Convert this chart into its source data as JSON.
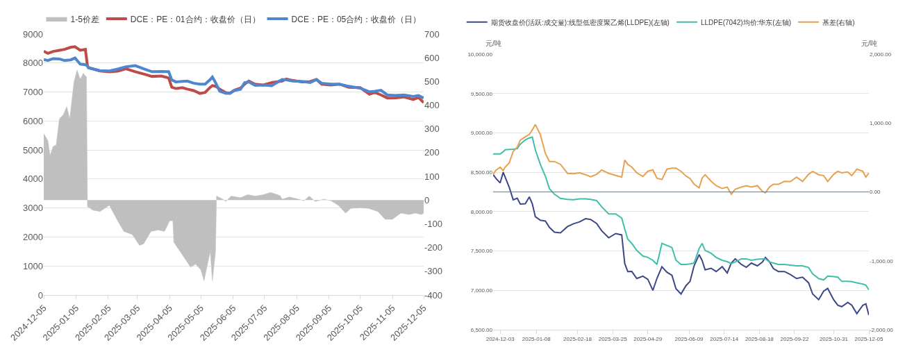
{
  "chart_data": [
    {
      "type": "line",
      "legend": "top",
      "grid": "y",
      "xlim": [
        "2024-12-05",
        "2025-12-05"
      ],
      "xticks": [
        "2024-12-05",
        "2025-01-05",
        "2025-02-05",
        "2025-03-05",
        "2025-04-05",
        "2025-05-05",
        "2025-06-05",
        "2025-07-05",
        "2025-08-05",
        "2025-09-05",
        "2025-10-05",
        "2025-11-05",
        "2025-12-05"
      ],
      "ylim": [
        0,
        9000
      ],
      "yticks": [
        0,
        1000,
        2000,
        3000,
        4000,
        5000,
        6000,
        7000,
        8000,
        9000
      ],
      "y2lim": [
        -400,
        700
      ],
      "y2ticks": [
        -400,
        -300,
        -200,
        -100,
        0,
        100,
        200,
        300,
        400,
        500,
        600,
        700
      ],
      "series": [
        {
          "name": "1-5价差",
          "type": "area",
          "axis": "y2",
          "color": "#bfbfbf",
          "x": [
            "2024-12-05",
            "2024-12-09",
            "2024-12-11",
            "2024-12-14",
            "2024-12-17",
            "2024-12-20",
            "2024-12-24",
            "2024-12-27",
            "2024-12-30",
            "2025-01-03",
            "2025-01-06",
            "2025-01-09",
            "2025-01-12",
            "2025-01-14",
            "2025-01-15",
            "2025-01-16",
            "2025-01-17",
            "2025-01-21",
            "2025-01-28",
            "2025-02-06",
            "2025-02-14",
            "2025-02-20",
            "2025-02-28",
            "2025-03-07",
            "2025-03-11",
            "2025-03-18",
            "2025-03-25",
            "2025-03-31",
            "2025-04-05",
            "2025-04-08",
            "2025-04-09",
            "2025-04-14",
            "2025-04-19",
            "2025-04-25",
            "2025-04-30",
            "2025-05-05",
            "2025-05-08",
            "2025-05-12",
            "2025-05-14",
            "2025-05-16",
            "2025-05-19",
            "2025-05-20",
            "2025-05-26",
            "2025-05-29",
            "2025-06-03",
            "2025-06-12",
            "2025-06-19",
            "2025-06-26",
            "2025-07-04",
            "2025-07-11",
            "2025-07-20",
            "2025-07-22",
            "2025-07-29",
            "2025-08-07",
            "2025-08-12",
            "2025-08-17",
            "2025-08-23",
            "2025-08-31",
            "2025-09-07",
            "2025-09-14",
            "2025-09-21",
            "2025-09-26",
            "2025-10-05",
            "2025-10-13",
            "2025-10-22",
            "2025-10-29",
            "2025-11-05",
            "2025-11-13",
            "2025-11-21",
            "2025-11-27",
            "2025-12-03",
            "2025-12-05"
          ],
          "values": [
            280,
            250,
            187,
            226,
            233,
            342,
            361,
            394,
            342,
            497,
            548,
            510,
            535,
            523,
            520,
            -29,
            -29,
            -42,
            -48,
            -22,
            -87,
            -132,
            -145,
            -191,
            -184,
            -132,
            -126,
            -132,
            -87,
            -87,
            -178,
            -210,
            -243,
            -282,
            -270,
            -295,
            -340,
            -256,
            -217,
            -340,
            -217,
            17,
            4,
            -6,
            17,
            10,
            23,
            17,
            23,
            32,
            19,
            4,
            13,
            4,
            -3,
            17,
            -6,
            4,
            -3,
            -22,
            -55,
            -35,
            -32,
            -35,
            -48,
            -81,
            -81,
            -55,
            -61,
            -55,
            -61,
            -55
          ]
        },
        {
          "name": "DCE：PE：01合约：收盘价（日）",
          "type": "line",
          "color": "#be4b48",
          "x": [
            "2024-12-05",
            "2024-12-09",
            "2024-12-14",
            "2024-12-20",
            "2024-12-25",
            "2024-12-31",
            "2025-01-04",
            "2025-01-09",
            "2025-01-14",
            "2025-01-16",
            "2025-01-17",
            "2025-01-23",
            "2025-01-28",
            "2025-02-06",
            "2025-02-14",
            "2025-02-22",
            "2025-03-03",
            "2025-03-11",
            "2025-03-19",
            "2025-03-28",
            "2025-04-04",
            "2025-04-07",
            "2025-04-11",
            "2025-04-17",
            "2025-04-22",
            "2025-04-28",
            "2025-05-04",
            "2025-05-09",
            "2025-05-14",
            "2025-05-16",
            "2025-05-19",
            "2025-05-23",
            "2025-05-29",
            "2025-06-02",
            "2025-06-06",
            "2025-06-12",
            "2025-06-16",
            "2025-06-20",
            "2025-06-26",
            "2025-07-04",
            "2025-07-12",
            "2025-07-22",
            "2025-07-26",
            "2025-08-01",
            "2025-08-10",
            "2025-08-18",
            "2025-08-24",
            "2025-08-29",
            "2025-09-07",
            "2025-09-15",
            "2025-09-24",
            "2025-10-05",
            "2025-10-14",
            "2025-10-19",
            "2025-10-25",
            "2025-10-31",
            "2025-11-08",
            "2025-11-16",
            "2025-11-25",
            "2025-11-30",
            "2025-12-05"
          ],
          "values": [
            8406,
            8332,
            8400,
            8438,
            8470,
            8544,
            8560,
            8438,
            8470,
            7900,
            7840,
            7780,
            7727,
            7696,
            7720,
            7802,
            7700,
            7621,
            7537,
            7550,
            7484,
            7165,
            7120,
            7150,
            7100,
            7050,
            6950,
            6985,
            7165,
            7220,
            7200,
            7100,
            6980,
            6960,
            7059,
            7134,
            7271,
            7378,
            7271,
            7240,
            7325,
            7378,
            7450,
            7400,
            7346,
            7360,
            7431,
            7271,
            7240,
            7271,
            7160,
            7150,
            6922,
            6985,
            6900,
            6794,
            6800,
            6830,
            6741,
            6815,
            6635
          ]
        },
        {
          "name": "DCE：PE：05合约：收盘价（日）",
          "type": "line",
          "color": "#4f86d0",
          "x": [
            "2024-12-05",
            "2024-12-09",
            "2024-12-14",
            "2024-12-20",
            "2024-12-25",
            "2024-12-31",
            "2025-01-04",
            "2025-01-09",
            "2025-01-14",
            "2025-01-16",
            "2025-01-17",
            "2025-01-23",
            "2025-01-28",
            "2025-02-06",
            "2025-02-14",
            "2025-02-22",
            "2025-03-03",
            "2025-03-11",
            "2025-03-19",
            "2025-03-28",
            "2025-04-04",
            "2025-04-07",
            "2025-04-11",
            "2025-04-17",
            "2025-04-22",
            "2025-04-28",
            "2025-05-04",
            "2025-05-09",
            "2025-05-14",
            "2025-05-16",
            "2025-05-19",
            "2025-05-23",
            "2025-05-29",
            "2025-06-02",
            "2025-06-06",
            "2025-06-12",
            "2025-06-16",
            "2025-06-20",
            "2025-06-26",
            "2025-07-04",
            "2025-07-12",
            "2025-07-22",
            "2025-07-26",
            "2025-08-01",
            "2025-08-10",
            "2025-08-18",
            "2025-08-24",
            "2025-08-29",
            "2025-09-07",
            "2025-09-15",
            "2025-09-24",
            "2025-10-05",
            "2025-10-14",
            "2025-10-19",
            "2025-10-25",
            "2025-10-31",
            "2025-11-08",
            "2025-11-16",
            "2025-11-25",
            "2025-11-30",
            "2025-12-05"
          ],
          "values": [
            8120,
            8088,
            8152,
            8140,
            8088,
            8110,
            8173,
            7961,
            7940,
            7900,
            7834,
            7780,
            7740,
            7727,
            7790,
            7870,
            7908,
            7800,
            7700,
            7710,
            7700,
            7420,
            7346,
            7367,
            7378,
            7303,
            7271,
            7271,
            7431,
            7515,
            7325,
            7028,
            6953,
            6953,
            7049,
            7091,
            7325,
            7346,
            7230,
            7240,
            7218,
            7431,
            7420,
            7378,
            7367,
            7325,
            7431,
            7303,
            7271,
            7271,
            7197,
            7134,
            7006,
            7028,
            7059,
            6900,
            6879,
            6900,
            6847,
            6879,
            6794
          ]
        }
      ]
    },
    {
      "type": "line",
      "legend": "top left",
      "grid": "y",
      "ylabel": "元/吨",
      "y2label": "元/吨",
      "xlim": [
        "2024-11-26",
        "2025-12-05"
      ],
      "xticks": [
        "2024-12-03",
        "2025-01-08",
        "2025-02-18",
        "2025-03-25",
        "2025-04-29",
        "2025-06-09",
        "2025-07-14",
        "2025-08-18",
        "2025-09-22",
        "2025-10-31",
        "2025-12-05"
      ],
      "ylim": [
        6500,
        10000
      ],
      "yticks": [
        {
          "value": 6500,
          "label": "6,500.00"
        },
        {
          "value": 7000,
          "label": "7,000.00"
        },
        {
          "value": 7500,
          "label": "7,500.00"
        },
        {
          "value": 8000,
          "label": "8,000.00"
        },
        {
          "value": 8500,
          "label": "8,500.00"
        },
        {
          "value": 9000,
          "label": "9,000.00"
        },
        {
          "value": 9500,
          "label": "9,500.00"
        },
        {
          "value": 10000,
          "label": "10,000.00"
        }
      ],
      "y2lim": [
        -2000,
        2000
      ],
      "y2ticks": [
        {
          "value": -2000,
          "label": "-2,000.00"
        },
        {
          "value": -1000,
          "label": "-1,000.00"
        },
        {
          "value": 0,
          "label": "0.00"
        },
        {
          "value": 1000,
          "label": "1,000.00"
        },
        {
          "value": 2000,
          "label": "2,000.00"
        }
      ],
      "ref_lines": [
        {
          "axis": "y2",
          "value": 0,
          "color": "#6f7d8c"
        }
      ],
      "x": [
        "2024-11-26",
        "2024-11-29",
        "2024-12-03",
        "2024-12-06",
        "2024-12-08",
        "2024-12-12",
        "2024-12-16",
        "2024-12-20",
        "2024-12-23",
        "2024-12-28",
        "2025-01-01",
        "2025-01-04",
        "2025-01-07",
        "2025-01-12",
        "2025-01-17",
        "2025-01-21",
        "2025-01-26",
        "2025-02-01",
        "2025-02-08",
        "2025-02-14",
        "2025-02-20",
        "2025-02-26",
        "2025-03-03",
        "2025-03-09",
        "2025-03-14",
        "2025-03-21",
        "2025-03-28",
        "2025-04-03",
        "2025-04-06",
        "2025-04-09",
        "2025-04-13",
        "2025-04-18",
        "2025-04-24",
        "2025-04-29",
        "2025-05-04",
        "2025-05-08",
        "2025-05-13",
        "2025-05-18",
        "2025-05-23",
        "2025-05-27",
        "2025-06-01",
        "2025-06-06",
        "2025-06-10",
        "2025-06-14",
        "2025-06-19",
        "2025-06-22",
        "2025-06-25",
        "2025-07-01",
        "2025-07-06",
        "2025-07-12",
        "2025-07-17",
        "2025-07-21",
        "2025-07-25",
        "2025-07-31",
        "2025-08-05",
        "2025-08-10",
        "2025-08-16",
        "2025-08-21",
        "2025-08-24",
        "2025-08-28",
        "2025-09-01",
        "2025-09-06",
        "2025-09-12",
        "2025-09-18",
        "2025-09-24",
        "2025-09-30",
        "2025-10-06",
        "2025-10-10",
        "2025-10-16",
        "2025-10-21",
        "2025-10-25",
        "2025-10-31",
        "2025-11-04",
        "2025-11-08",
        "2025-11-14",
        "2025-11-18",
        "2025-11-23",
        "2025-11-29",
        "2025-12-02",
        "2025-12-05"
      ],
      "series": [
        {
          "name": "期货收盘价(活跃:成交量):线型低密度聚乙烯(LLDPE)(左轴)",
          "color": "#3c4788",
          "values": [
            8471,
            8418,
            8364,
            8500,
            8436,
            8311,
            8150,
            8170,
            8096,
            8100,
            8186,
            8100,
            7936,
            7890,
            7880,
            7800,
            7739,
            7730,
            7810,
            7846,
            7870,
            7910,
            7900,
            7850,
            7757,
            7668,
            7721,
            7704,
            7340,
            7239,
            7240,
            7150,
            7180,
            7140,
            7000,
            7150,
            7300,
            7230,
            7190,
            7020,
            6954,
            7060,
            7114,
            7311,
            7454,
            7380,
            7260,
            7280,
            7239,
            7300,
            7221,
            7346,
            7400,
            7329,
            7293,
            7346,
            7311,
            7360,
            7418,
            7364,
            7275,
            7239,
            7239,
            7200,
            7150,
            7168,
            7096,
            6954,
            6882,
            6989,
            7025,
            6880,
            6811,
            6793,
            6846,
            6811,
            6704,
            6811,
            6829,
            6686
          ]
        },
        {
          "name": "LLDPE(7042)均价:华东(左轴)",
          "color": "#3fbfaa",
          "values": [
            8732,
            8732,
            8732,
            8760,
            8786,
            8790,
            8793,
            8800,
            8857,
            8911,
            8936,
            8946,
            8786,
            8600,
            8450,
            8293,
            8221,
            8168,
            8155,
            8150,
            8161,
            8161,
            8155,
            8140,
            8061,
            7971,
            7971,
            7918,
            7780,
            7650,
            7596,
            7507,
            7436,
            7418,
            7382,
            7329,
            7596,
            7570,
            7543,
            7382,
            7329,
            7329,
            7335,
            7346,
            7530,
            7596,
            7507,
            7471,
            7418,
            7382,
            7364,
            7340,
            7360,
            7400,
            7400,
            7382,
            7395,
            7400,
            7400,
            7360,
            7346,
            7329,
            7329,
            7320,
            7311,
            7311,
            7290,
            7210,
            7150,
            7132,
            7180,
            7175,
            7168,
            7114,
            7114,
            7110,
            7096,
            7079,
            7065,
            7007
          ]
        },
        {
          "name": "基差(右轴)",
          "axis": "y2",
          "color": "#e8a04f",
          "values": [
            256,
            318,
            360,
            310,
            360,
            420,
            587,
            650,
            752,
            800,
            835,
            900,
            979,
            830,
            560,
            442,
            442,
            401,
            270,
            265,
            277,
            250,
            220,
            256,
            318,
            270,
            240,
            215,
            463,
            401,
            360,
            277,
            225,
            300,
            320,
            200,
            180,
            330,
            345,
            345,
            300,
            230,
            194,
            112,
            60,
            200,
            250,
            153,
            91,
            50,
            70,
            -33,
            40,
            70,
            91,
            70,
            91,
            8,
            -12,
            70,
            112,
            112,
            153,
            150,
            215,
            153,
            256,
            298,
            250,
            236,
            153,
            256,
            298,
            277,
            290,
            236,
            330,
            298,
            215,
            277
          ]
        }
      ]
    }
  ]
}
